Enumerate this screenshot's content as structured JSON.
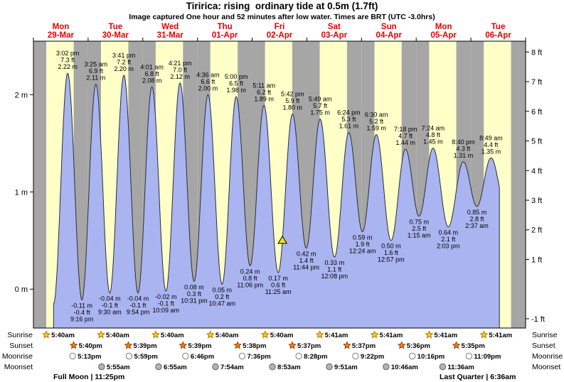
{
  "title": "Tiririca: rising  ordinary tide at 0.5m (1.7ft)",
  "subtitle": "Image captured One hour and 52 minutes after low water. Times are BRT (UTC -3.0hrs)",
  "chart_data": {
    "type": "area",
    "y_range_m": {
      "min": -0.4,
      "max": 2.55
    },
    "y_axis_left": {
      "unit": "m",
      "ticks": [
        {
          "v": 2,
          "label": "2 m"
        },
        {
          "v": 1,
          "label": "1 m"
        },
        {
          "v": 0,
          "label": "0 m"
        }
      ]
    },
    "y_axis_right": {
      "unit": "ft",
      "ticks": [
        {
          "v": 8,
          "label": "8 ft"
        },
        {
          "v": 7,
          "label": "7 ft"
        },
        {
          "v": 6,
          "label": "6 ft"
        },
        {
          "v": 5,
          "label": "5 ft"
        },
        {
          "v": 4,
          "label": "4 ft"
        },
        {
          "v": 3,
          "label": "3 ft"
        },
        {
          "v": 2,
          "label": "2 ft"
        },
        {
          "v": 1,
          "label": "1 ft"
        },
        {
          "v": -1,
          "label": "-1 ft"
        }
      ]
    },
    "days": [
      {
        "name": "Mon",
        "date": "29-Mar"
      },
      {
        "name": "Tue",
        "date": "30-Mar"
      },
      {
        "name": "Wed",
        "date": "31-Mar"
      },
      {
        "name": "Thu",
        "date": "01-Apr"
      },
      {
        "name": "Fri",
        "date": "02-Apr"
      },
      {
        "name": "Sat",
        "date": "03-Apr"
      },
      {
        "name": "Sun",
        "date": "04-Apr"
      },
      {
        "name": "Mon",
        "date": "05-Apr"
      },
      {
        "name": "Tue",
        "date": "06-Apr"
      }
    ],
    "tide_events": [
      {
        "type": "high",
        "day": 0,
        "hour": 15.033,
        "m": 2.22,
        "labels": {
          "time": "3:02 pm",
          "ft": "7.3 ft",
          "m": "2.22 m"
        }
      },
      {
        "type": "low",
        "day": 0,
        "hour": 21.267,
        "m": -0.11,
        "labels": {
          "time": "9:16 pm",
          "ft": "-0.4 ft",
          "m": "-0.11 m"
        }
      },
      {
        "type": "high",
        "day": 1,
        "hour": 3.417,
        "m": 2.11,
        "labels": {
          "time": "3:25 am",
          "ft": "6.9 ft",
          "m": "2.11 m"
        }
      },
      {
        "type": "low",
        "day": 1,
        "hour": 9.5,
        "m": -0.04,
        "labels": {
          "time": "9:30 am",
          "ft": "-0.1 ft",
          "m": "-0.04 m"
        }
      },
      {
        "type": "high",
        "day": 1,
        "hour": 15.683,
        "m": 2.2,
        "labels": {
          "time": "3:41 pm",
          "ft": "7.2 ft",
          "m": "2.20 m"
        }
      },
      {
        "type": "low",
        "day": 1,
        "hour": 21.9,
        "m": -0.04,
        "labels": {
          "time": "9:54 pm",
          "ft": "-0.1 ft",
          "m": "-0.04 m"
        }
      },
      {
        "type": "high",
        "day": 2,
        "hour": 4.017,
        "m": 2.08,
        "labels": {
          "time": "4:01 am",
          "ft": "6.8 ft",
          "m": "2.08 m"
        }
      },
      {
        "type": "low",
        "day": 2,
        "hour": 10.15,
        "m": -0.02,
        "labels": {
          "time": "10:09 am",
          "ft": "-0.1 ft",
          "m": "-0.02 m"
        }
      },
      {
        "type": "high",
        "day": 2,
        "hour": 16.35,
        "m": 2.12,
        "labels": {
          "time": "4:21 pm",
          "ft": "7.0 ft",
          "m": "2.12 m"
        }
      },
      {
        "type": "low",
        "day": 2,
        "hour": 22.517,
        "m": 0.08,
        "labels": {
          "time": "10:31 pm",
          "ft": "0.3 ft",
          "m": "0.08 m"
        }
      },
      {
        "type": "high",
        "day": 3,
        "hour": 4.6,
        "m": 2.0,
        "labels": {
          "time": "4:36 am",
          "ft": "6.6 ft",
          "m": "2.00 m"
        }
      },
      {
        "type": "low",
        "day": 3,
        "hour": 10.783,
        "m": 0.05,
        "labels": {
          "time": "10:47 am",
          "ft": "0.2 ft",
          "m": "0.05 m"
        }
      },
      {
        "type": "high",
        "day": 3,
        "hour": 17.0,
        "m": 1.98,
        "labels": {
          "time": "5:00 pm",
          "ft": "6.5 ft",
          "m": "1.98 m"
        }
      },
      {
        "type": "low",
        "day": 3,
        "hour": 23.1,
        "m": 0.24,
        "labels": {
          "time": "11:06 pm",
          "ft": "0.8 ft",
          "m": "0.24 m"
        }
      },
      {
        "type": "high",
        "day": 4,
        "hour": 5.183,
        "m": 1.89,
        "labels": {
          "time": "5:11 am",
          "ft": "6.2 ft",
          "m": "1.89 m"
        }
      },
      {
        "type": "low",
        "day": 4,
        "hour": 11.417,
        "m": 0.17,
        "labels": {
          "time": "11:25 am",
          "ft": "0.6 ft",
          "m": "0.17 m"
        }
      },
      {
        "type": "high",
        "day": 4,
        "hour": 17.7,
        "m": 1.8,
        "labels": {
          "time": "5:42 pm",
          "ft": "5.9 ft",
          "m": "1.80 m"
        }
      },
      {
        "type": "low",
        "day": 4,
        "hour": 23.733,
        "m": 0.42,
        "labels": {
          "time": "11:44 pm",
          "ft": "1.4 ft",
          "m": "0.42 m"
        }
      },
      {
        "type": "high",
        "day": 5,
        "hour": 5.817,
        "m": 1.75,
        "labels": {
          "time": "5:49 am",
          "ft": "5.7 ft",
          "m": "1.75 m"
        }
      },
      {
        "type": "low",
        "day": 5,
        "hour": 12.133,
        "m": 0.33,
        "labels": {
          "time": "12:08 pm",
          "ft": "1.1 ft",
          "m": "0.33 m"
        }
      },
      {
        "type": "high",
        "day": 5,
        "hour": 18.4,
        "m": 1.61,
        "labels": {
          "time": "6:24 pm",
          "ft": "5.3 ft",
          "m": "1.61 m"
        }
      },
      {
        "type": "low",
        "day": 6,
        "hour": 0.4,
        "m": 0.59,
        "labels": {
          "time": "12:24 am",
          "ft": "1.9 ft",
          "m": "0.59 m"
        }
      },
      {
        "type": "high",
        "day": 6,
        "hour": 6.5,
        "m": 1.59,
        "labels": {
          "time": "6:30 am",
          "ft": "5.2 ft",
          "m": "1.59 m"
        }
      },
      {
        "type": "low",
        "day": 6,
        "hour": 12.95,
        "m": 0.5,
        "labels": {
          "time": "12:57 pm",
          "ft": "1.6 ft",
          "m": "0.50 m"
        }
      },
      {
        "type": "high",
        "day": 6,
        "hour": 19.3,
        "m": 1.44,
        "labels": {
          "time": "7:18 pm",
          "ft": "4.7 ft",
          "m": "1.44 m"
        }
      },
      {
        "type": "low",
        "day": 7,
        "hour": 1.25,
        "m": 0.75,
        "labels": {
          "time": "1:15 am",
          "ft": "2.5 ft",
          "m": "0.75 m"
        }
      },
      {
        "type": "high",
        "day": 7,
        "hour": 7.4,
        "m": 1.45,
        "labels": {
          "time": "7:24 am",
          "ft": "4.8 ft",
          "m": "1.45 m"
        }
      },
      {
        "type": "low",
        "day": 7,
        "hour": 14.05,
        "m": 0.64,
        "labels": {
          "time": "2:03 pm",
          "ft": "2.1 ft",
          "m": "0.64 m"
        }
      },
      {
        "type": "high",
        "day": 7,
        "hour": 20.667,
        "m": 1.31,
        "labels": {
          "time": "8:40 pm",
          "ft": "4.3 ft",
          "m": "1.31 m"
        }
      },
      {
        "type": "low",
        "day": 8,
        "hour": 2.617,
        "m": 0.85,
        "labels": {
          "time": "2:37 am",
          "ft": "2.8 ft",
          "m": "0.85 m"
        }
      },
      {
        "type": "high",
        "day": 8,
        "hour": 8.817,
        "m": 1.35,
        "labels": {
          "time": "8:49 am",
          "ft": "4.4 ft",
          "m": "1.35 m"
        }
      }
    ],
    "marker": {
      "day": 4,
      "hour": 13.283,
      "m": 0.5
    },
    "colors": {
      "day_band": "#ffffc8",
      "night_band": "#a6a6a6",
      "tide_fill": "#a9b4f0",
      "tide_stroke": "#2b2f36",
      "day_label": "#e60000",
      "marker_fill": "#f5e100"
    }
  },
  "astro": {
    "colors": {
      "sunrise": "#ffd700",
      "sunrise_stroke": "#b06000",
      "sunset": "#ff8000",
      "sunset_stroke": "#903000",
      "moonrise": "#ffffea",
      "moonrise_stroke": "#808080",
      "moonset": "#b4b4b4",
      "moonset_stroke": "#606060"
    },
    "rows": [
      {
        "label": "Sunrise",
        "icon": "sunrise-icon",
        "entries": [
          {
            "day": 0,
            "hour": 5.667,
            "time": "5:40am"
          },
          {
            "day": 1,
            "hour": 5.667,
            "time": "5:40am"
          },
          {
            "day": 2,
            "hour": 5.667,
            "time": "5:40am"
          },
          {
            "day": 3,
            "hour": 5.667,
            "time": "5:40am"
          },
          {
            "day": 4,
            "hour": 5.667,
            "time": "5:40am"
          },
          {
            "day": 5,
            "hour": 5.683,
            "time": "5:41am"
          },
          {
            "day": 6,
            "hour": 5.683,
            "time": "5:41am"
          },
          {
            "day": 7,
            "hour": 5.683,
            "time": "5:41am"
          },
          {
            "day": 8,
            "hour": 5.683,
            "time": "5:41am"
          }
        ]
      },
      {
        "label": "Sunset",
        "icon": "sunset-icon",
        "entries": [
          {
            "day": 0,
            "hour": 17.667,
            "time": "5:40pm"
          },
          {
            "day": 1,
            "hour": 17.65,
            "time": "5:39pm"
          },
          {
            "day": 2,
            "hour": 17.65,
            "time": "5:39pm"
          },
          {
            "day": 3,
            "hour": 17.633,
            "time": "5:38pm"
          },
          {
            "day": 4,
            "hour": 17.617,
            "time": "5:37pm"
          },
          {
            "day": 5,
            "hour": 17.617,
            "time": "5:37pm"
          },
          {
            "day": 6,
            "hour": 17.6,
            "time": "5:36pm"
          },
          {
            "day": 7,
            "hour": 17.583,
            "time": "5:35pm"
          }
        ]
      },
      {
        "label": "Moonrise",
        "icon": "moonrise-icon",
        "entries": [
          {
            "day": 0,
            "hour": 17.217,
            "time": "5:13pm"
          },
          {
            "day": 1,
            "hour": 17.983,
            "time": "5:59pm"
          },
          {
            "day": 2,
            "hour": 18.767,
            "time": "6:46pm"
          },
          {
            "day": 3,
            "hour": 19.6,
            "time": "7:36pm"
          },
          {
            "day": 4,
            "hour": 20.467,
            "time": "8:28pm"
          },
          {
            "day": 5,
            "hour": 21.367,
            "time": "9:22pm"
          },
          {
            "day": 6,
            "hour": 22.267,
            "time": "10:16pm"
          },
          {
            "day": 7,
            "hour": 23.15,
            "time": "11:09pm"
          }
        ]
      },
      {
        "label": "Moonset",
        "icon": "moonset-icon",
        "entries": [
          {
            "day": 1,
            "hour": 5.917,
            "time": "5:55am"
          },
          {
            "day": 2,
            "hour": 6.917,
            "time": "6:55am"
          },
          {
            "day": 3,
            "hour": 7.9,
            "time": "7:54am"
          },
          {
            "day": 4,
            "hour": 8.883,
            "time": "8:53am"
          },
          {
            "day": 5,
            "hour": 9.85,
            "time": "9:51am"
          },
          {
            "day": 6,
            "hour": 10.767,
            "time": "10:46am"
          },
          {
            "day": 7,
            "hour": 11.6,
            "time": "11:36am"
          }
        ]
      }
    ],
    "footer_left": "Full Moon | 11:25pm",
    "footer_right": "Last Quarter | 6:36am"
  }
}
